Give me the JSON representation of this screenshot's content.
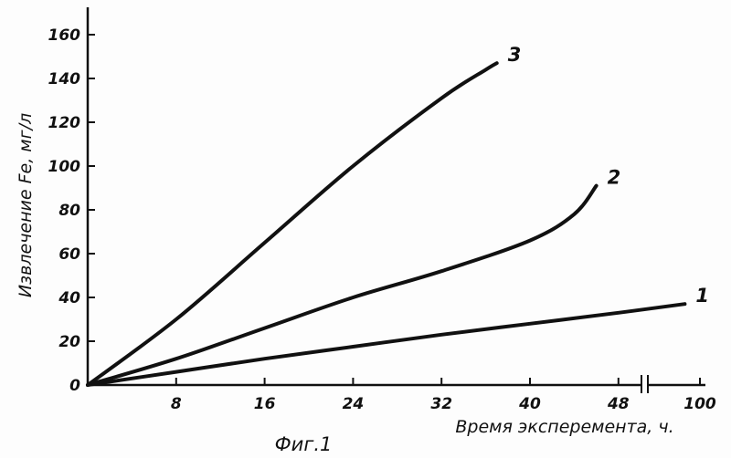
{
  "chart_data": {
    "type": "line",
    "caption": "Фиг.1",
    "xlabel": "Время эксперемента, ч.",
    "ylabel": "Извлечение Fe, мг/л",
    "x_ticks": [
      "8",
      "16",
      "24",
      "32",
      "40",
      "48",
      "100"
    ],
    "y_ticks": [
      "0",
      "20",
      "40",
      "60",
      "80",
      "100",
      "120",
      "140",
      "160"
    ],
    "x_axis_break_between": [
      48,
      100
    ],
    "ylim": [
      0,
      165
    ],
    "grid": false,
    "series": [
      {
        "name": "1",
        "x": [
          0,
          8,
          16,
          24,
          32,
          40,
          48,
          54
        ],
        "y": [
          0,
          6,
          12,
          17.5,
          23,
          28,
          33,
          37
        ]
      },
      {
        "name": "2",
        "x": [
          0,
          8,
          16,
          24,
          32,
          40,
          44,
          46
        ],
        "y": [
          0,
          12,
          26,
          40,
          52,
          66,
          78,
          91
        ]
      },
      {
        "name": "3",
        "x": [
          0,
          8,
          16,
          24,
          32,
          36,
          37
        ],
        "y": [
          0,
          30,
          65,
          100,
          131,
          144,
          147
        ]
      }
    ]
  }
}
